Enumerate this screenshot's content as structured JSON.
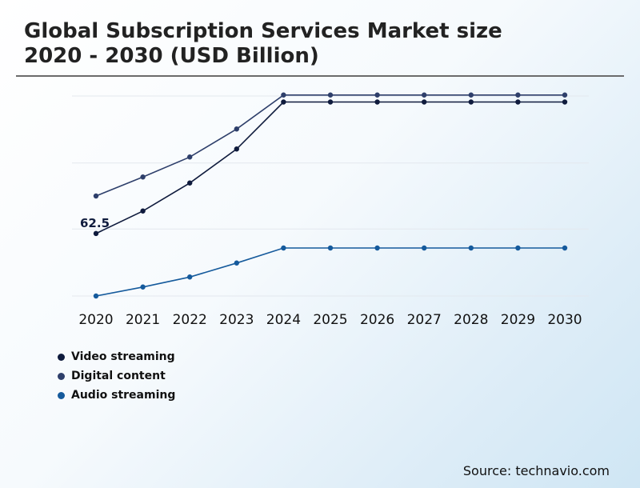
{
  "title_line1": "Global Subscription Services Market size",
  "title_line2": "2020 - 2030 (USD Billion)",
  "source": "Source: technavio.com",
  "chart_data": {
    "type": "line",
    "title": "Global Subscription Services Market size 2020 - 2030 (USD Billion)",
    "categories": [
      "2020",
      "2021",
      "2022",
      "2023",
      "2024",
      "2025",
      "2026",
      "2027",
      "2028",
      "2029",
      "2030"
    ],
    "ylim": [
      0,
      200
    ],
    "grid": true,
    "legend_position": "bottom-left",
    "annotation": {
      "series": "Video streaming",
      "category": "2020",
      "label": "62.5"
    },
    "series": [
      {
        "name": "Video streaming",
        "color": "#0f1b3d",
        "values": [
          62.5,
          85,
          113,
          147,
          194,
          194,
          194,
          194,
          194,
          194,
          194
        ]
      },
      {
        "name": "Digital content",
        "color": "#2e3f6b",
        "values": [
          100,
          119,
          139,
          167,
          201,
          201,
          201,
          201,
          201,
          201,
          201
        ]
      },
      {
        "name": "Audio streaming",
        "color": "#155a9c",
        "values": [
          0,
          9,
          19,
          33,
          48,
          48,
          48,
          48,
          48,
          48,
          48
        ]
      }
    ]
  }
}
